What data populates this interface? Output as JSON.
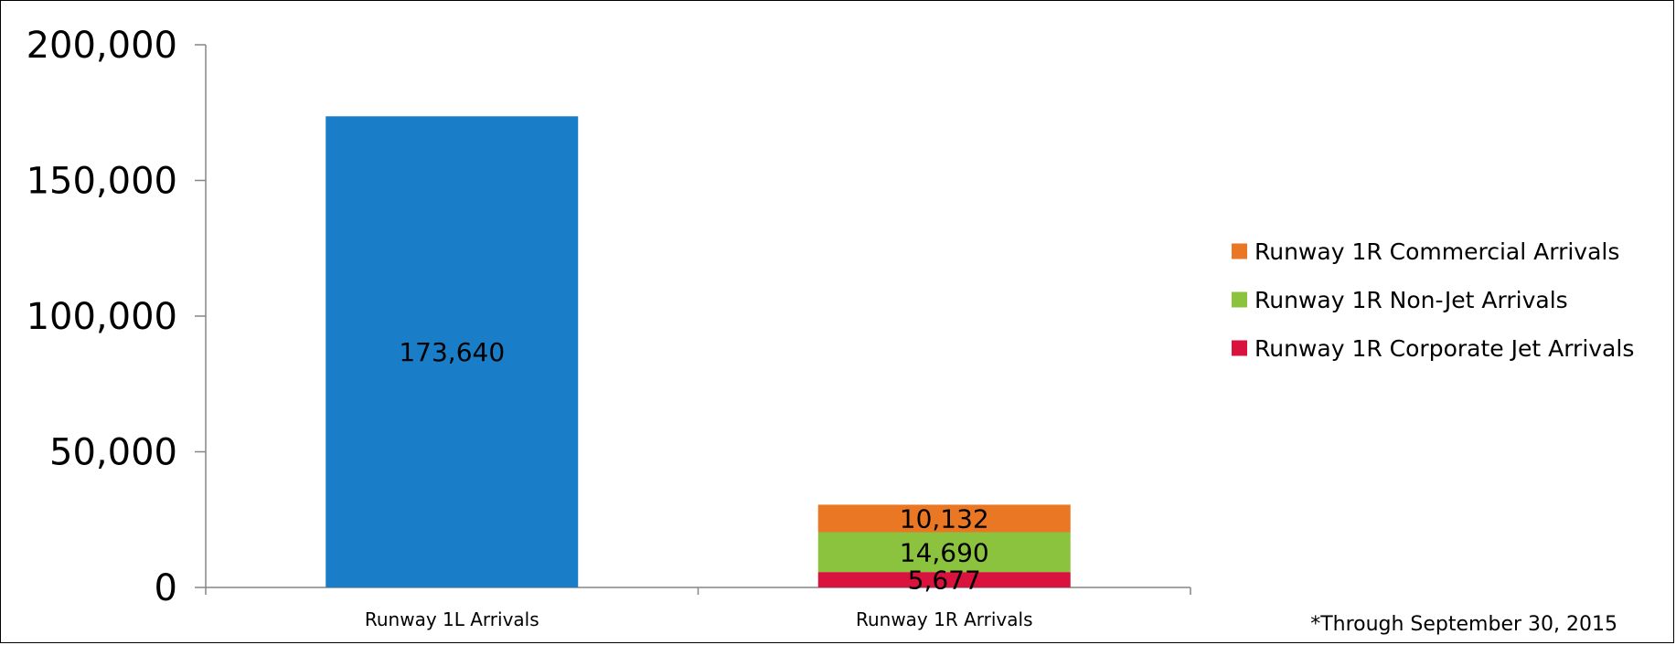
{
  "chart_data": {
    "type": "bar",
    "stacked": true,
    "categories": [
      "Runway 1L Arrivals",
      "Runway 1R Arrivals"
    ],
    "series": [
      {
        "name": "",
        "color": "#1a7dc7",
        "values": [
          173640,
          null
        ],
        "labels": [
          "173,640",
          ""
        ]
      },
      {
        "name": "Runway 1R Corporate Jet Arrivals",
        "color": "#d9123e",
        "values": [
          null,
          5677
        ],
        "labels": [
          "",
          "5,677"
        ]
      },
      {
        "name": "Runway 1R Non-Jet Arrivals",
        "color": "#8bc33f",
        "values": [
          null,
          14690
        ],
        "labels": [
          "",
          "14,690"
        ]
      },
      {
        "name": "Runway 1R Commercial Arrivals",
        "color": "#ea7724",
        "values": [
          null,
          10132
        ],
        "labels": [
          "",
          "10,132"
        ]
      }
    ],
    "ylim": [
      0,
      200000
    ],
    "yticks": [
      0,
      50000,
      100000,
      150000,
      200000
    ],
    "ytick_labels": [
      "0",
      "50,000",
      "100,000",
      "150,000",
      "200,000"
    ],
    "xlabel": "",
    "ylabel": "",
    "grid": false,
    "legend": {
      "position": "right",
      "entries": [
        {
          "label": "Runway 1R Commercial Arrivals",
          "color": "#ea7724"
        },
        {
          "label": "Runway 1R Non-Jet Arrivals",
          "color": "#8bc33f"
        },
        {
          "label": "Runway 1R Corporate Jet Arrivals",
          "color": "#d9123e"
        }
      ]
    },
    "annotations": [
      "*Through September 30, 2015"
    ]
  }
}
